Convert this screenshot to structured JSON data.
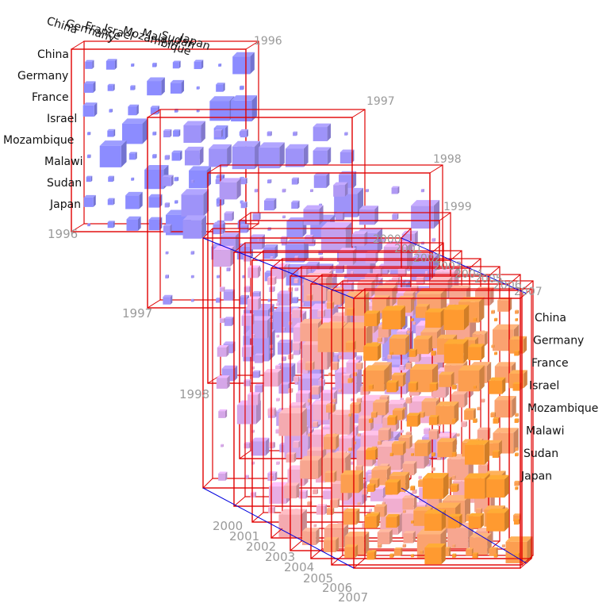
{
  "chart_data": {
    "type": "heatmap",
    "title": "",
    "xlabel": "",
    "ylabel": "",
    "rows": [
      "China",
      "Germany",
      "France",
      "Israel",
      "Mozambique",
      "Malawi",
      "Sudan",
      "Japan"
    ],
    "columns": [
      "China",
      "Germany",
      "France",
      "Israel",
      "Mozambique",
      "Malawi",
      "Sudan",
      "Japan"
    ],
    "years": [
      "1996",
      "1997",
      "1998",
      "1999",
      "2000",
      "2001",
      "2002",
      "2003",
      "2004",
      "2005",
      "2006",
      "2007"
    ],
    "color_start": "#8c8cff",
    "color_mid": "#f0b0e0",
    "color_end": "#ff9a30",
    "frame_color": "#e00000",
    "axis_color": "#0000dd",
    "cell_values_note_free": true
  }
}
